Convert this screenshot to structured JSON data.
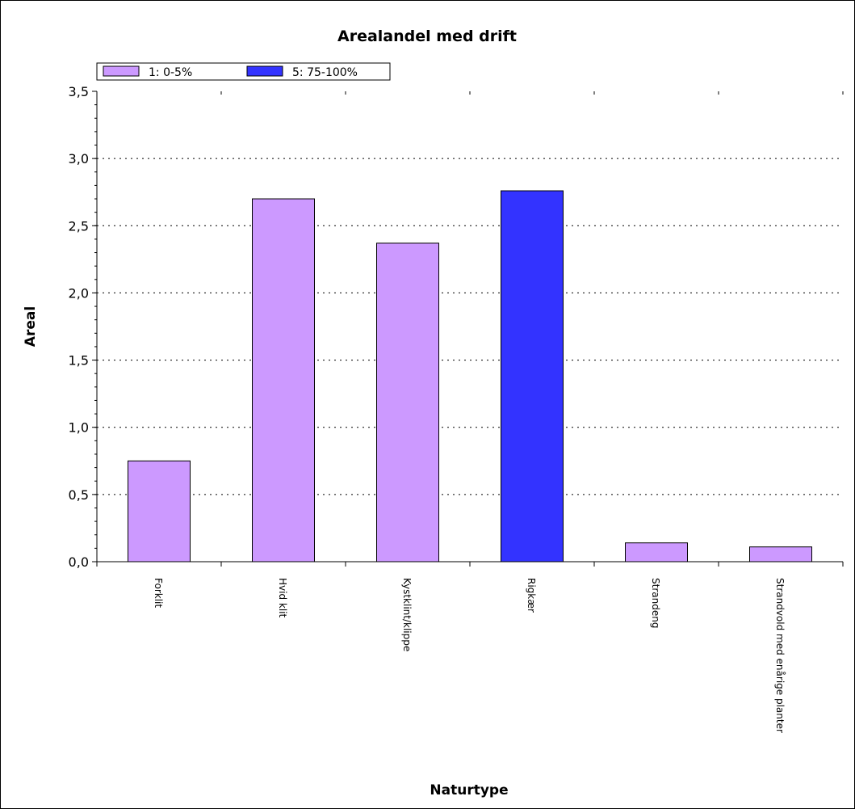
{
  "chart_data": {
    "type": "bar",
    "title": "Arealandel med drift",
    "xlabel": "Naturtype",
    "ylabel": "Areal",
    "ylim": [
      0,
      3.5
    ],
    "yticks": [
      "0,0",
      "0,5",
      "1,0",
      "1,5",
      "2,0",
      "2,5",
      "3,0",
      "3,5"
    ],
    "grid": true,
    "legend_placement": "top-left",
    "categories": [
      "Forklit",
      "Hvid klit",
      "Kystklint/klippe",
      "Rigkær",
      "Strandeng",
      "Strandvold med enårige planter"
    ],
    "legend": [
      {
        "name": "1: 0-5%",
        "color": "#cc99ff"
      },
      {
        "name": "5: 75-100%",
        "color": "#3333ff"
      }
    ],
    "bars": [
      {
        "category": "Forklit",
        "value": 0.75,
        "series": "1: 0-5%"
      },
      {
        "category": "Hvid klit",
        "value": 2.7,
        "series": "1: 0-5%"
      },
      {
        "category": "Kystklint/klippe",
        "value": 2.37,
        "series": "1: 0-5%"
      },
      {
        "category": "Rigkær",
        "value": 2.76,
        "series": "5: 75-100%"
      },
      {
        "category": "Strandeng",
        "value": 0.14,
        "series": "1: 0-5%"
      },
      {
        "category": "Strandvold med enårige planter",
        "value": 0.11,
        "series": "1: 0-5%"
      }
    ]
  }
}
